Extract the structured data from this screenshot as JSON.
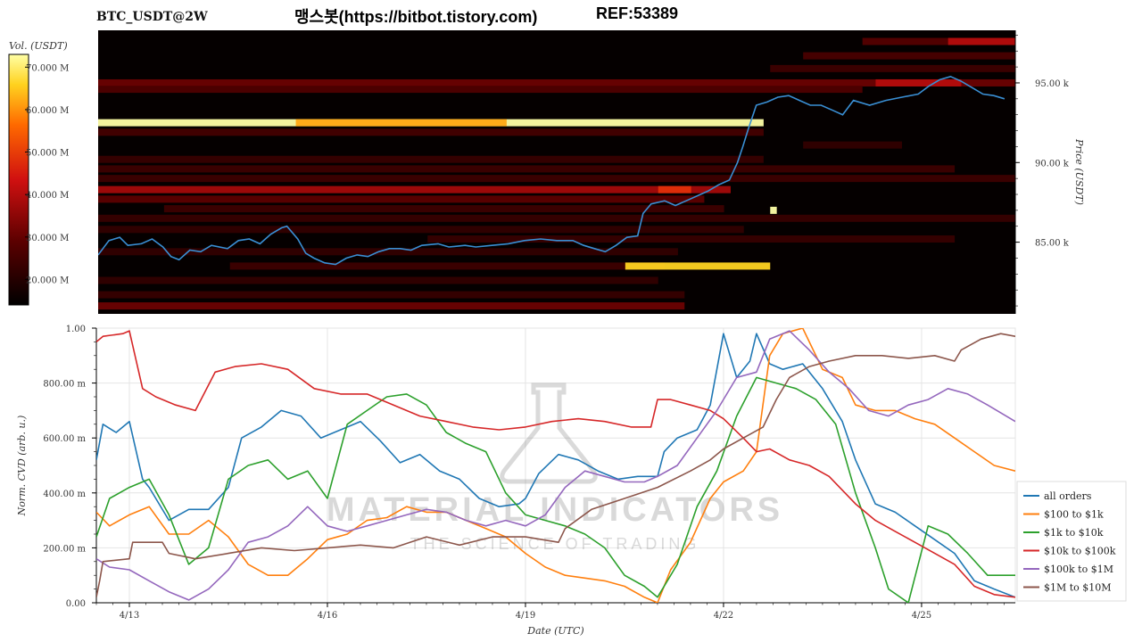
{
  "header": {
    "title": "BTC_USDT@2W",
    "brand": "맹스봇(https://bitbot.tistory.com)",
    "ref": "REF:53389"
  },
  "watermark": {
    "line1": "MATERIAL INDICATORS",
    "line2": "THE SCIENCE OF TRADING"
  },
  "colors": {
    "price_line": "#3a8fd4",
    "heatmap_bg": "#050000",
    "colorbar_top": "#ffff99",
    "colorbar_bottom": "#000000"
  },
  "chart_data": [
    {
      "type": "heatmap",
      "title": "BTC_USDT@2W",
      "ylabel": "Price (USDT)",
      "colorbar_label": "Vol. (USDT)",
      "colorbar_ticks": [
        "20.000 M",
        "30.000 M",
        "40.000 M",
        "50.000 M",
        "60.000 M",
        "70.000 M"
      ],
      "colorbar_range": [
        14,
        73
      ],
      "price_ticks": [
        {
          "v": 85,
          "label": "85.00 k"
        },
        {
          "v": 90,
          "label": "90.00 k"
        },
        {
          "v": 95,
          "label": "95.00 k"
        }
      ],
      "ylim": [
        80.5,
        98.3
      ],
      "xlim": [
        0,
        13.92
      ],
      "price_series": [
        [
          0,
          84.2
        ],
        [
          0.2,
          85.1
        ],
        [
          0.4,
          85.3
        ],
        [
          0.55,
          84.8
        ],
        [
          0.8,
          84.9
        ],
        [
          1.0,
          85.2
        ],
        [
          1.2,
          84.7
        ],
        [
          1.35,
          84.1
        ],
        [
          1.5,
          83.9
        ],
        [
          1.7,
          84.5
        ],
        [
          1.9,
          84.4
        ],
        [
          2.1,
          84.8
        ],
        [
          2.4,
          84.6
        ],
        [
          2.6,
          85.1
        ],
        [
          2.8,
          85.2
        ],
        [
          3.0,
          84.9
        ],
        [
          3.2,
          85.5
        ],
        [
          3.4,
          85.9
        ],
        [
          3.5,
          86.0
        ],
        [
          3.7,
          85.2
        ],
        [
          3.85,
          84.3
        ],
        [
          4.0,
          84.0
        ],
        [
          4.2,
          83.7
        ],
        [
          4.4,
          83.6
        ],
        [
          4.6,
          84.0
        ],
        [
          4.8,
          84.2
        ],
        [
          5.0,
          84.1
        ],
        [
          5.2,
          84.4
        ],
        [
          5.4,
          84.6
        ],
        [
          5.6,
          84.6
        ],
        [
          5.8,
          84.5
        ],
        [
          6.0,
          84.8
        ],
        [
          6.3,
          84.9
        ],
        [
          6.5,
          84.7
        ],
        [
          6.8,
          84.8
        ],
        [
          7.0,
          84.7
        ],
        [
          7.3,
          84.8
        ],
        [
          7.6,
          84.9
        ],
        [
          7.9,
          85.1
        ],
        [
          8.2,
          85.2
        ],
        [
          8.5,
          85.1
        ],
        [
          8.8,
          85.1
        ],
        [
          9.0,
          84.8
        ],
        [
          9.2,
          84.6
        ],
        [
          9.4,
          84.4
        ],
        [
          9.6,
          84.8
        ],
        [
          9.8,
          85.3
        ],
        [
          10.0,
          85.4
        ],
        [
          10.1,
          86.8
        ],
        [
          10.25,
          87.4
        ],
        [
          10.5,
          87.6
        ],
        [
          10.7,
          87.3
        ],
        [
          10.9,
          87.6
        ],
        [
          11.1,
          87.9
        ],
        [
          11.3,
          88.2
        ],
        [
          11.5,
          88.6
        ],
        [
          11.7,
          88.9
        ],
        [
          11.85,
          90.0
        ],
        [
          11.95,
          91.0
        ],
        [
          12.05,
          92.1
        ],
        [
          12.2,
          93.6
        ],
        [
          12.4,
          93.8
        ],
        [
          12.6,
          94.1
        ],
        [
          12.8,
          94.2
        ],
        [
          13.0,
          93.9
        ],
        [
          13.2,
          93.6
        ],
        [
          13.4,
          93.6
        ],
        [
          13.6,
          93.3
        ],
        [
          13.8,
          93.0
        ],
        [
          14.0,
          93.9
        ],
        [
          14.3,
          93.6
        ],
        [
          14.6,
          93.9
        ],
        [
          14.9,
          94.1
        ],
        [
          15.2,
          94.3
        ],
        [
          15.4,
          94.8
        ],
        [
          15.6,
          95.2
        ],
        [
          15.8,
          95.4
        ],
        [
          16.0,
          95.1
        ],
        [
          16.2,
          94.7
        ],
        [
          16.4,
          94.3
        ],
        [
          16.6,
          94.2
        ],
        [
          16.8,
          94.0
        ],
        [
          17.0,
          93.6
        ]
      ],
      "x_scale_note": "",
      "levels": [
        {
          "p": 97.6,
          "x0": 11.6,
          "x1": 13.92,
          "v": 28
        },
        {
          "p": 97.6,
          "x0": 12.9,
          "x1": 13.92,
          "v": 40
        },
        {
          "p": 96.7,
          "x0": 10.7,
          "x1": 13.92,
          "v": 26
        },
        {
          "p": 95.9,
          "x0": 10.2,
          "x1": 13.92,
          "v": 24
        },
        {
          "p": 95.0,
          "x0": 0,
          "x1": 13.92,
          "v": 31
        },
        {
          "p": 95.0,
          "x0": 11.8,
          "x1": 13.1,
          "v": 40
        },
        {
          "p": 94.6,
          "x0": 0,
          "x1": 11.6,
          "v": 27
        },
        {
          "p": 92.5,
          "x0": 0,
          "x1": 10.1,
          "v": 73
        },
        {
          "p": 92.5,
          "x0": 3.0,
          "x1": 6.2,
          "v": 62
        },
        {
          "p": 91.9,
          "x0": 0,
          "x1": 10.1,
          "v": 25
        },
        {
          "p": 91.1,
          "x0": 10.7,
          "x1": 12.2,
          "v": 22
        },
        {
          "p": 90.2,
          "x0": 0,
          "x1": 10.1,
          "v": 23
        },
        {
          "p": 89.6,
          "x0": 0,
          "x1": 13.0,
          "v": 24
        },
        {
          "p": 89.0,
          "x0": 0,
          "x1": 13.92,
          "v": 24
        },
        {
          "p": 88.3,
          "x0": 0,
          "x1": 9.6,
          "v": 38
        },
        {
          "p": 88.3,
          "x0": 8.5,
          "x1": 9.0,
          "v": 48
        },
        {
          "p": 87.7,
          "x0": 0,
          "x1": 9.2,
          "v": 29
        },
        {
          "p": 87.1,
          "x0": 1.0,
          "x1": 9.5,
          "v": 24
        },
        {
          "p": 86.5,
          "x0": 0,
          "x1": 13.92,
          "v": 23
        },
        {
          "p": 85.8,
          "x0": 0,
          "x1": 9.8,
          "v": 22
        },
        {
          "p": 85.2,
          "x0": 5.0,
          "x1": 13.0,
          "v": 23
        },
        {
          "p": 84.4,
          "x0": 0,
          "x1": 8.8,
          "v": 22
        },
        {
          "p": 83.5,
          "x0": 2.0,
          "x1": 8.6,
          "v": 24
        },
        {
          "p": 83.5,
          "x0": 8.0,
          "x1": 10.2,
          "v": 66
        },
        {
          "p": 82.6,
          "x0": 0,
          "x1": 8.5,
          "v": 22
        },
        {
          "p": 81.7,
          "x0": 0,
          "x1": 8.9,
          "v": 23
        },
        {
          "p": 81.0,
          "x0": 0,
          "x1": 8.9,
          "v": 31
        },
        {
          "p": 87.0,
          "x0": 10.2,
          "x1": 10.3,
          "v": 73
        }
      ]
    },
    {
      "type": "line",
      "xlabel": "Date (UTC)",
      "ylabel": "Norm. CVD (arb. u.)",
      "x_ticks": [
        "4/13",
        "4/16",
        "4/19",
        "4/22",
        "4/25"
      ],
      "y_ticks": [
        "0.00",
        "200.00 m",
        "400.00 m",
        "600.00 m",
        "800.00 m",
        "1.00"
      ],
      "ylim": [
        0,
        1
      ],
      "x_range_days": [
        12.5,
        26.42
      ],
      "legend_position": "right",
      "series": [
        {
          "name": "all orders",
          "color": "#1f77b4",
          "x": [
            12.5,
            12.6,
            12.8,
            13.0,
            13.2,
            13.3,
            13.6,
            13.9,
            14.2,
            14.5,
            14.7,
            15.0,
            15.3,
            15.6,
            15.9,
            16.2,
            16.5,
            16.8,
            17.1,
            17.4,
            17.7,
            18.0,
            18.3,
            18.6,
            18.9,
            19.0,
            19.2,
            19.5,
            19.8,
            20.1,
            20.4,
            20.7,
            21.0,
            21.1,
            21.3,
            21.6,
            21.8,
            22.0,
            22.2,
            22.4,
            22.5,
            22.7,
            22.9,
            23.2,
            23.5,
            23.8,
            24.0,
            24.3,
            24.6,
            24.9,
            25.2,
            25.5,
            25.8,
            26.1,
            26.42
          ],
          "y": [
            0.52,
            0.65,
            0.62,
            0.66,
            0.45,
            0.42,
            0.3,
            0.34,
            0.34,
            0.42,
            0.6,
            0.64,
            0.7,
            0.68,
            0.6,
            0.63,
            0.66,
            0.59,
            0.51,
            0.54,
            0.48,
            0.45,
            0.38,
            0.35,
            0.36,
            0.38,
            0.47,
            0.54,
            0.52,
            0.48,
            0.45,
            0.46,
            0.46,
            0.55,
            0.6,
            0.63,
            0.72,
            0.98,
            0.82,
            0.88,
            0.98,
            0.87,
            0.85,
            0.87,
            0.78,
            0.66,
            0.52,
            0.36,
            0.33,
            0.28,
            0.23,
            0.18,
            0.08,
            0.05,
            0.02
          ]
        },
        {
          "name": "$100 to $1k",
          "color": "#ff7f0e",
          "x": [
            12.5,
            12.7,
            13.0,
            13.3,
            13.6,
            13.9,
            14.2,
            14.5,
            14.8,
            15.1,
            15.4,
            15.7,
            16.0,
            16.3,
            16.6,
            16.9,
            17.2,
            17.5,
            17.8,
            18.1,
            18.4,
            18.7,
            19.0,
            19.3,
            19.6,
            19.9,
            20.2,
            20.5,
            20.8,
            21.0,
            21.2,
            21.5,
            21.8,
            22.0,
            22.3,
            22.5,
            22.7,
            22.9,
            23.2,
            23.5,
            23.8,
            24.0,
            24.3,
            24.6,
            24.9,
            25.2,
            25.5,
            25.8,
            26.1,
            26.42
          ],
          "y": [
            0.33,
            0.28,
            0.32,
            0.35,
            0.25,
            0.25,
            0.3,
            0.24,
            0.14,
            0.1,
            0.1,
            0.16,
            0.23,
            0.25,
            0.3,
            0.31,
            0.35,
            0.33,
            0.33,
            0.3,
            0.27,
            0.24,
            0.18,
            0.13,
            0.1,
            0.09,
            0.08,
            0.06,
            0.02,
            0.0,
            0.12,
            0.22,
            0.38,
            0.44,
            0.48,
            0.55,
            0.9,
            0.98,
            1.0,
            0.85,
            0.82,
            0.72,
            0.7,
            0.7,
            0.67,
            0.65,
            0.6,
            0.55,
            0.5,
            0.48
          ]
        },
        {
          "name": "$1k to $10k",
          "color": "#2ca02c",
          "x": [
            12.5,
            12.7,
            13.0,
            13.3,
            13.6,
            13.9,
            14.2,
            14.5,
            14.8,
            15.1,
            15.4,
            15.7,
            16.0,
            16.3,
            16.6,
            16.9,
            17.2,
            17.5,
            17.8,
            18.1,
            18.4,
            18.7,
            19.0,
            19.3,
            19.6,
            19.9,
            20.2,
            20.5,
            20.8,
            21.0,
            21.3,
            21.6,
            21.9,
            22.2,
            22.5,
            22.8,
            23.1,
            23.4,
            23.7,
            24.0,
            24.3,
            24.5,
            24.8,
            25.1,
            25.4,
            25.7,
            26.0,
            26.42
          ],
          "y": [
            0.24,
            0.38,
            0.42,
            0.45,
            0.32,
            0.14,
            0.2,
            0.45,
            0.5,
            0.52,
            0.45,
            0.48,
            0.38,
            0.65,
            0.7,
            0.75,
            0.76,
            0.72,
            0.62,
            0.58,
            0.55,
            0.4,
            0.32,
            0.3,
            0.28,
            0.25,
            0.2,
            0.1,
            0.06,
            0.02,
            0.14,
            0.35,
            0.48,
            0.68,
            0.82,
            0.8,
            0.78,
            0.74,
            0.65,
            0.4,
            0.2,
            0.05,
            0.0,
            0.28,
            0.25,
            0.18,
            0.1,
            0.1
          ]
        },
        {
          "name": "$10k to $100k",
          "color": "#d62728",
          "x": [
            12.5,
            12.6,
            12.9,
            13.0,
            13.2,
            13.4,
            13.7,
            14.0,
            14.3,
            14.6,
            15.0,
            15.4,
            15.8,
            16.2,
            16.6,
            17.0,
            17.4,
            17.8,
            18.2,
            18.6,
            19.0,
            19.4,
            19.8,
            20.2,
            20.6,
            20.9,
            21.0,
            21.2,
            21.5,
            21.8,
            22.0,
            22.3,
            22.5,
            22.7,
            23.0,
            23.3,
            23.6,
            24.0,
            24.3,
            24.6,
            24.9,
            25.2,
            25.5,
            25.8,
            26.1,
            26.42
          ],
          "y": [
            0.95,
            0.97,
            0.98,
            0.99,
            0.78,
            0.75,
            0.72,
            0.7,
            0.84,
            0.86,
            0.87,
            0.85,
            0.78,
            0.76,
            0.76,
            0.72,
            0.68,
            0.66,
            0.64,
            0.63,
            0.64,
            0.66,
            0.67,
            0.66,
            0.64,
            0.64,
            0.74,
            0.74,
            0.72,
            0.7,
            0.67,
            0.6,
            0.55,
            0.56,
            0.52,
            0.5,
            0.46,
            0.36,
            0.3,
            0.26,
            0.22,
            0.18,
            0.14,
            0.06,
            0.03,
            0.02
          ]
        },
        {
          "name": "$100k to $1M",
          "color": "#9467bd",
          "x": [
            12.5,
            12.7,
            13.0,
            13.3,
            13.6,
            13.9,
            14.2,
            14.5,
            14.8,
            15.1,
            15.4,
            15.7,
            16.0,
            16.3,
            16.6,
            16.9,
            17.2,
            17.5,
            17.8,
            18.1,
            18.4,
            18.7,
            19.0,
            19.3,
            19.6,
            19.9,
            20.2,
            20.5,
            20.8,
            21.0,
            21.3,
            21.6,
            21.9,
            22.2,
            22.5,
            22.7,
            23.0,
            23.3,
            23.6,
            23.9,
            24.2,
            24.5,
            24.8,
            25.1,
            25.4,
            25.7,
            26.0,
            26.42
          ],
          "y": [
            0.16,
            0.13,
            0.12,
            0.08,
            0.04,
            0.01,
            0.05,
            0.12,
            0.22,
            0.24,
            0.28,
            0.35,
            0.28,
            0.26,
            0.28,
            0.3,
            0.32,
            0.34,
            0.33,
            0.3,
            0.28,
            0.3,
            0.28,
            0.32,
            0.42,
            0.48,
            0.46,
            0.44,
            0.44,
            0.46,
            0.5,
            0.6,
            0.7,
            0.82,
            0.84,
            0.96,
            0.99,
            0.92,
            0.84,
            0.78,
            0.7,
            0.68,
            0.72,
            0.74,
            0.78,
            0.76,
            0.72,
            0.66
          ]
        },
        {
          "name": "$1M to $10M",
          "color": "#8c564b",
          "x": [
            12.5,
            12.55,
            12.6,
            13.0,
            13.05,
            13.5,
            13.6,
            14.0,
            14.5,
            15.0,
            15.5,
            16.0,
            16.5,
            17.0,
            17.5,
            18.0,
            18.5,
            19.0,
            19.5,
            19.6,
            20.0,
            20.5,
            21.0,
            21.5,
            21.8,
            22.0,
            22.3,
            22.6,
            22.8,
            23.0,
            23.3,
            23.6,
            24.0,
            24.4,
            24.8,
            25.2,
            25.5,
            25.6,
            25.9,
            26.2,
            26.42
          ],
          "y": [
            0.02,
            0.08,
            0.15,
            0.16,
            0.22,
            0.22,
            0.18,
            0.16,
            0.18,
            0.2,
            0.19,
            0.2,
            0.21,
            0.2,
            0.24,
            0.21,
            0.24,
            0.24,
            0.22,
            0.27,
            0.34,
            0.38,
            0.42,
            0.48,
            0.52,
            0.56,
            0.6,
            0.64,
            0.74,
            0.82,
            0.86,
            0.88,
            0.9,
            0.9,
            0.89,
            0.9,
            0.88,
            0.92,
            0.96,
            0.98,
            0.97
          ]
        }
      ]
    }
  ]
}
